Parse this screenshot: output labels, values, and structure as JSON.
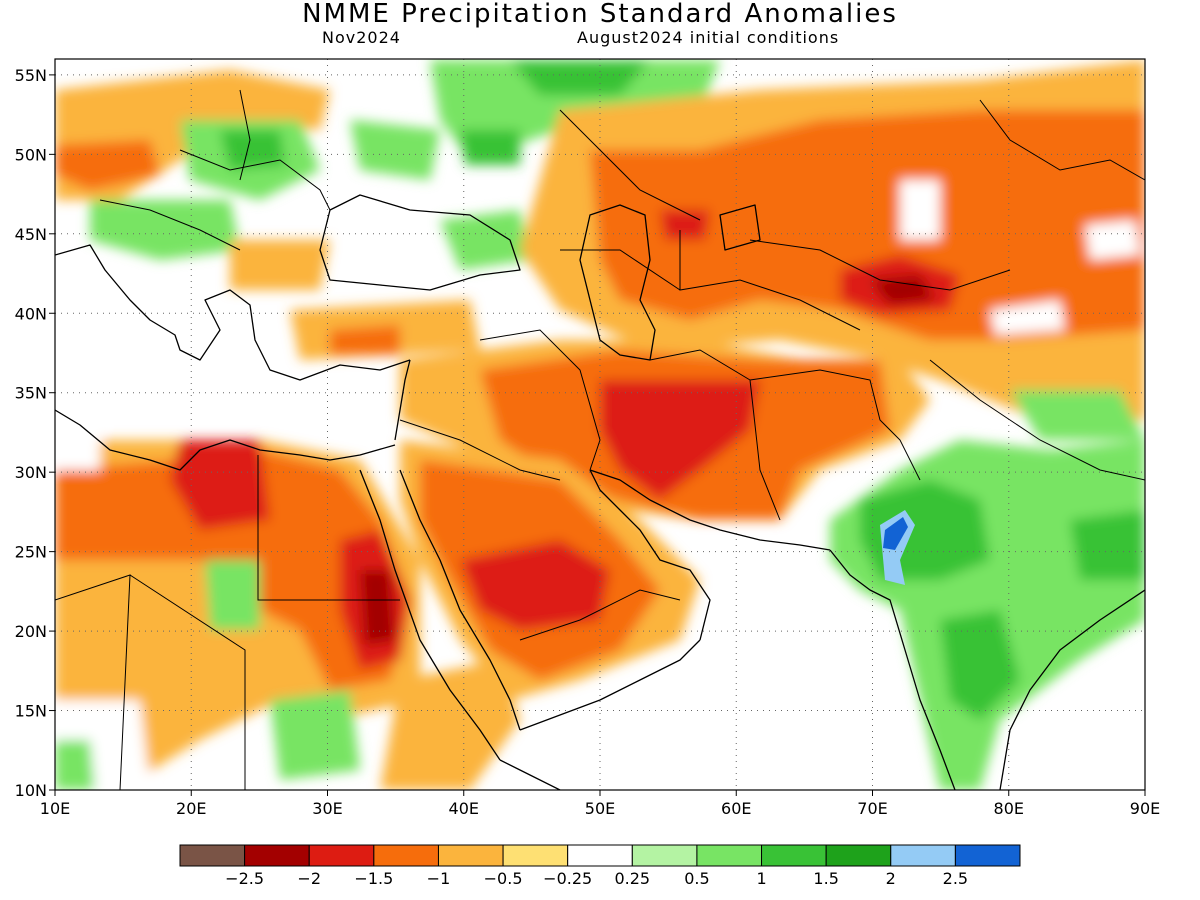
{
  "header": {
    "title": "NMME Precipitation Standard Anomalies",
    "target_month": "Nov2024",
    "init": "August2024 initial conditions"
  },
  "map": {
    "lon_range": [
      10,
      90
    ],
    "lat_range": [
      10,
      56
    ],
    "lat_ticks": [
      {
        "lat": 55,
        "label": "55N"
      },
      {
        "lat": 50,
        "label": "50N"
      },
      {
        "lat": 45,
        "label": "45N"
      },
      {
        "lat": 40,
        "label": "40N"
      },
      {
        "lat": 35,
        "label": "35N"
      },
      {
        "lat": 30,
        "label": "30N"
      },
      {
        "lat": 25,
        "label": "25N"
      },
      {
        "lat": 20,
        "label": "20N"
      },
      {
        "lat": 15,
        "label": "15N"
      },
      {
        "lat": 10,
        "label": "10N"
      }
    ],
    "lon_ticks": [
      {
        "lon": 10,
        "label": "10E"
      },
      {
        "lon": 20,
        "label": "20E"
      },
      {
        "lon": 30,
        "label": "30E"
      },
      {
        "lon": 40,
        "label": "40E"
      },
      {
        "lon": 50,
        "label": "50E"
      },
      {
        "lon": 60,
        "label": "60E"
      },
      {
        "lon": 70,
        "label": "70E"
      },
      {
        "lon": 80,
        "label": "80E"
      },
      {
        "lon": 90,
        "label": "90E"
      }
    ],
    "grid": true
  },
  "legend": {
    "colors": [
      "#7a5446",
      "#a30000",
      "#dd1c12",
      "#f66d0c",
      "#fbb43d",
      "#fee073",
      "#ffffff",
      "#b4f3a3",
      "#78e464",
      "#39c236",
      "#1ea21b",
      "#94cbf5",
      "#1263d4"
    ],
    "labels": [
      "-2.5",
      "-2",
      "-1.5",
      "-1",
      "-0.5",
      "-0.25",
      "0.25",
      "0.5",
      "1",
      "1.5",
      "2",
      "2.5"
    ]
  }
}
